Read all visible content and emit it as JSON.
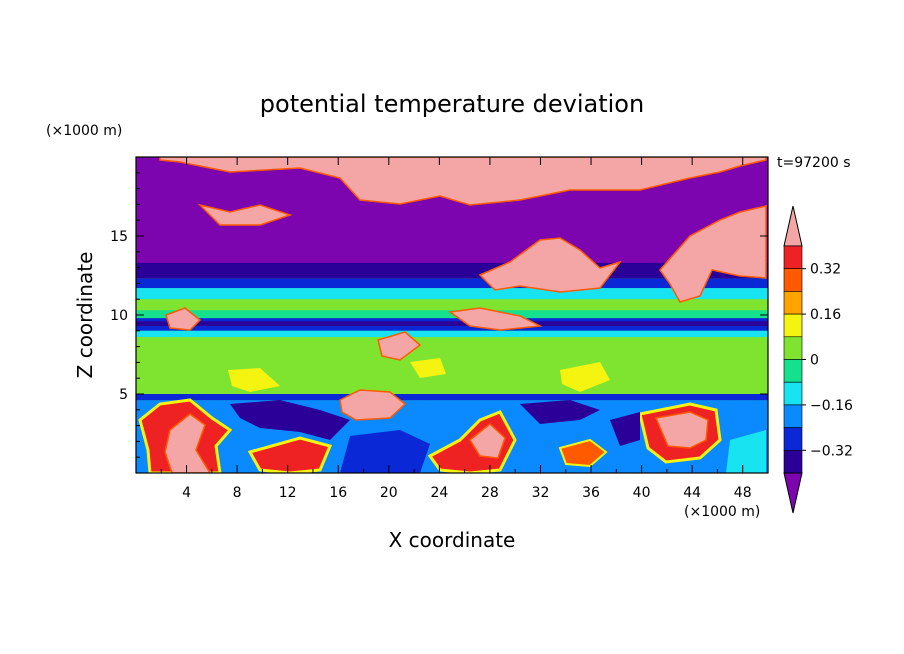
{
  "chart_data": {
    "type": "heatmap",
    "title": "potential temperature deviation",
    "xlabel": "X coordinate",
    "ylabel": "Z coordinate",
    "x_unit": "(×1000 m)",
    "y_unit": "(×1000 m)",
    "time_label": "t=97200 s",
    "xlim": [
      0,
      50
    ],
    "ylim": [
      0,
      20
    ],
    "x_ticks": [
      "4",
      "8",
      "12",
      "16",
      "20",
      "24",
      "28",
      "32",
      "36",
      "40",
      "44",
      "48"
    ],
    "y_ticks": [
      "5",
      "10",
      "15"
    ],
    "colorbar": {
      "tick_labels": [
        "0.32",
        "0.16",
        "0",
        "−0.16",
        "−0.32"
      ],
      "levels": [
        -0.4,
        -0.32,
        -0.24,
        -0.16,
        -0.08,
        0,
        0.08,
        0.16,
        0.24,
        0.32,
        0.4
      ],
      "colors": [
        "#7d05b0",
        "#2b0099",
        "#0a28d6",
        "#0b8aff",
        "#18e3f0",
        "#14e08e",
        "#7fe42f",
        "#f4f410",
        "#ffa300",
        "#ff5a00",
        "#ee2222",
        "#f4a6a6"
      ],
      "extend": "both"
    },
    "field_layers": [
      {
        "value": 0.0,
        "z_range": [
          0,
          20
        ],
        "color": "#14e08e"
      },
      {
        "value": -0.44,
        "z_range": [
          13,
          20
        ],
        "color": "#7d05b0"
      },
      {
        "value": -0.36,
        "z_range": [
          12.3,
          13.3
        ],
        "color": "#2b0099"
      },
      {
        "value": -0.28,
        "z_range": [
          11.7,
          12.3
        ],
        "color": "#0a28d6"
      },
      {
        "value": -0.12,
        "z_range": [
          11.0,
          11.7
        ],
        "color": "#18e3f0"
      },
      {
        "value": 0.04,
        "z_range": [
          10.3,
          11.0
        ],
        "color": "#7fe42f"
      },
      {
        "value": -0.28,
        "z_range": [
          9.0,
          9.8
        ],
        "color": "#0a28d6"
      },
      {
        "value": -0.36,
        "z_range": [
          9.3,
          9.6
        ],
        "color": "#2b0099"
      },
      {
        "value": -0.12,
        "z_range": [
          8.6,
          9.0
        ],
        "color": "#18e3f0"
      },
      {
        "value": 0.04,
        "z_range": [
          5.0,
          8.6
        ],
        "color": "#7fe42f"
      },
      {
        "value": -0.28,
        "z_range": [
          4.6,
          5.0
        ],
        "color": "#0a28d6"
      },
      {
        "value": -0.2,
        "z_range": [
          0,
          4.6
        ],
        "color": "#0b8aff"
      }
    ],
    "warm_patches_value": 0.44,
    "cold_patches_value": -0.36
  }
}
